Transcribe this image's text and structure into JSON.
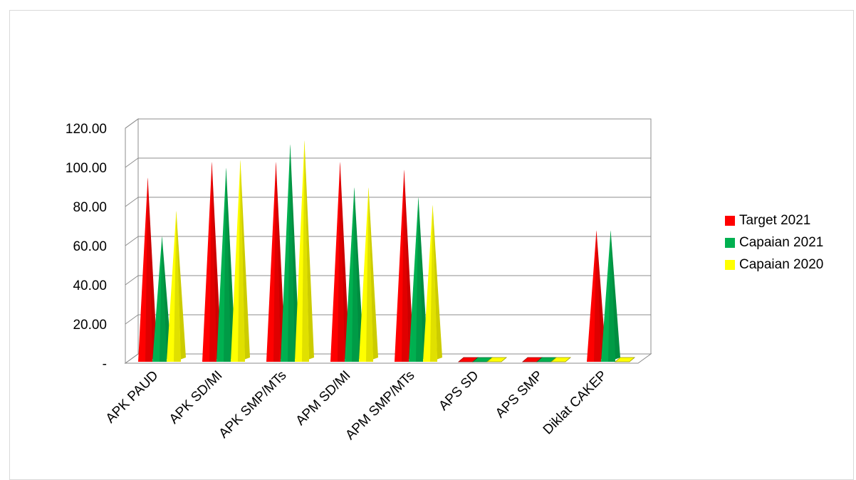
{
  "chart_data": {
    "type": "bar",
    "title": "",
    "xlabel": "",
    "ylabel": "",
    "ylim": [
      0,
      120
    ],
    "y_tick_values": [
      0,
      20,
      40,
      60,
      80,
      100,
      120
    ],
    "y_tick_labels": [
      "-",
      "20.00",
      "40.00",
      "60.00",
      "80.00",
      "100.00",
      "120.00"
    ],
    "grid": true,
    "legend_position": "right",
    "categories": [
      "APK PAUD",
      "APK SD/MI",
      "APK SMP/MTs",
      "APM SD/MI",
      "APM SMP/MTs",
      "APS SD",
      "APS SMP",
      "Diklat CAKEP"
    ],
    "series": [
      {
        "name": "Target 2021",
        "color": "#ff0000",
        "values": [
          93,
          101,
          101,
          101,
          97,
          0,
          0,
          66
        ]
      },
      {
        "name": "Capaian 2021",
        "color": "#00b050",
        "values": [
          63,
          98,
          110,
          88,
          83,
          0,
          0,
          66
        ]
      },
      {
        "name": "Capaian 2020",
        "color": "#ffff00",
        "values": [
          76,
          102,
          112,
          88,
          79,
          0,
          0,
          0
        ]
      }
    ]
  }
}
